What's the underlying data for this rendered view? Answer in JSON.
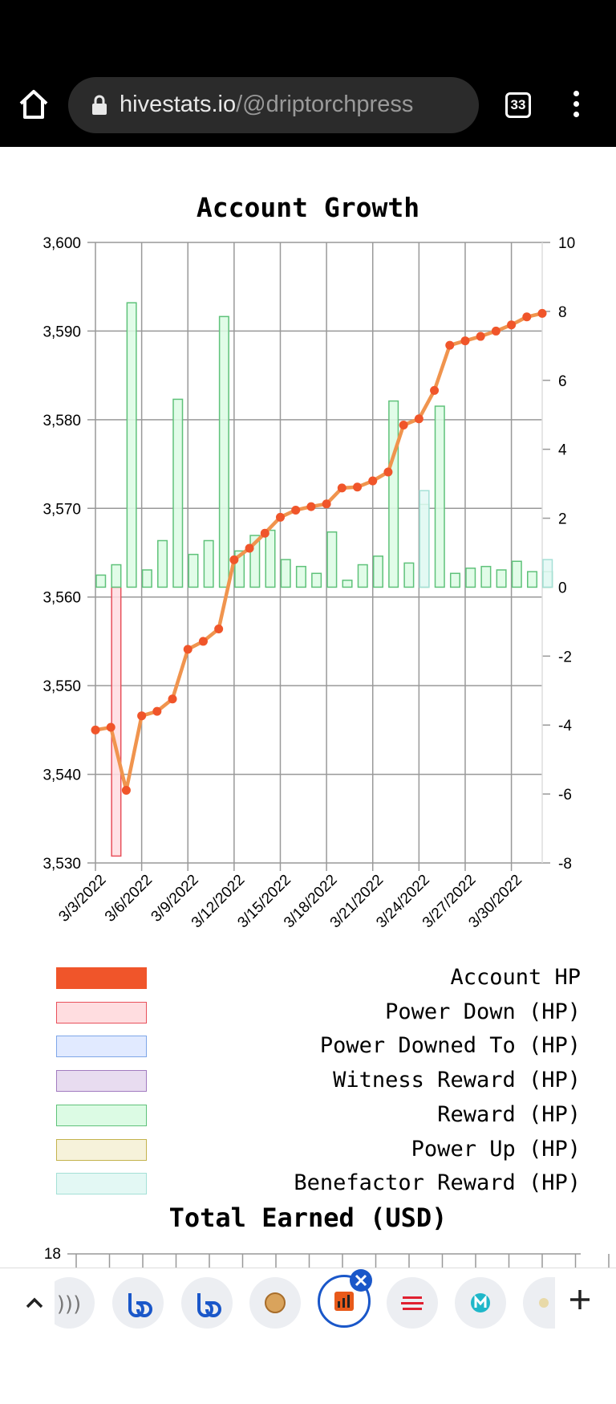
{
  "browser": {
    "url_domain": "hivestats.io",
    "url_path": "/@driptorchpress",
    "tab_count": "33"
  },
  "chart_title": "Account Growth",
  "chart_data": {
    "type": "bar",
    "title": "Account Growth",
    "left_axis": {
      "ylim": [
        3530,
        3600
      ],
      "ticks": [
        "3,530",
        "3,540",
        "3,550",
        "3,560",
        "3,570",
        "3,580",
        "3,590",
        "3,600"
      ]
    },
    "right_axis": {
      "ylim": [
        -8,
        10
      ],
      "ticks": [
        "-8",
        "-6",
        "-4",
        "-2",
        "0",
        "2",
        "4",
        "6",
        "8",
        "10"
      ]
    },
    "x_tick_labels": [
      "3/3/2022",
      "3/6/2022",
      "3/9/2022",
      "3/12/2022",
      "3/15/2022",
      "3/18/2022",
      "3/21/2022",
      "3/24/2022",
      "3/27/2022",
      "3/30/2022"
    ],
    "grid": true,
    "legend_placement": "bottom",
    "series": [
      {
        "name": "Account HP",
        "axis": "left",
        "kind": "line",
        "color": "#f0552a",
        "values": [
          3545.0,
          3545.3,
          3538.2,
          3546.6,
          3547.1,
          3548.5,
          3554.1,
          3555.0,
          3556.4,
          3564.2,
          3565.5,
          3567.2,
          3569.0,
          3569.8,
          3570.2,
          3570.5,
          3572.3,
          3572.4,
          3573.1,
          3574.1,
          3579.4,
          3580.1,
          3583.3,
          3588.4,
          3588.9,
          3589.4,
          3590.0,
          3590.7,
          3591.6,
          3592.0
        ]
      },
      {
        "name": "Power Down (HP)",
        "axis": "right",
        "kind": "bar",
        "color": "#ffdde0",
        "stroke": "#e8505b",
        "values": [
          0,
          -7.8,
          0,
          0,
          0,
          0,
          0,
          0,
          0,
          0,
          0,
          0,
          0,
          0,
          0,
          0,
          0,
          0,
          0,
          0,
          0,
          0,
          0,
          0,
          0,
          0,
          0,
          0,
          0,
          0
        ]
      },
      {
        "name": "Power Downed To (HP)",
        "axis": "right",
        "kind": "bar",
        "color": "#e1eaff",
        "stroke": "#7fa6e8",
        "values": []
      },
      {
        "name": "Witness Reward (HP)",
        "axis": "right",
        "kind": "bar",
        "color": "#e8dcf0",
        "stroke": "#a27cc0",
        "values": []
      },
      {
        "name": "Reward (HP)",
        "axis": "right",
        "kind": "bar",
        "color": "#dcfbe4",
        "stroke": "#5fc27a",
        "values": [
          0.35,
          0.65,
          8.25,
          0.5,
          1.35,
          5.45,
          0.95,
          1.35,
          7.85,
          1.05,
          1.5,
          1.65,
          0.8,
          0.6,
          0.4,
          1.6,
          0.2,
          0.65,
          0.9,
          5.4,
          0.7,
          2.4,
          5.25,
          0.4,
          0.55,
          0.6,
          0.5,
          0.75,
          0.45,
          0.45
        ]
      },
      {
        "name": "Power Up (HP)",
        "axis": "right",
        "kind": "bar",
        "color": "#f6f2da",
        "stroke": "#c4b34d",
        "values": []
      },
      {
        "name": "Benefactor Reward (HP)",
        "axis": "right",
        "kind": "bar",
        "color": "#e3f8f4",
        "stroke": "#a5e0d6",
        "values": [
          0,
          0,
          0,
          0,
          0,
          0,
          0,
          0,
          0,
          0,
          0,
          0,
          0,
          0,
          0,
          0,
          0,
          0,
          0,
          0,
          0,
          2.8,
          0,
          0,
          0,
          0,
          0,
          0,
          0,
          0.8
        ]
      }
    ]
  },
  "legend": [
    {
      "label": "Account HP",
      "fill": "#f0552a",
      "stroke": "#f0552a"
    },
    {
      "label": "Power Down (HP)",
      "fill": "#ffdde0",
      "stroke": "#e8505b"
    },
    {
      "label": "Power Downed To (HP)",
      "fill": "#e1eaff",
      "stroke": "#7fa6e8"
    },
    {
      "label": "Witness Reward (HP)",
      "fill": "#e8dcf0",
      "stroke": "#a27cc0"
    },
    {
      "label": "Reward (HP)",
      "fill": "#dcfbe4",
      "stroke": "#5fc27a"
    },
    {
      "label": "Power Up (HP)",
      "fill": "#f6f2da",
      "stroke": "#c4b34d"
    },
    {
      "label": "Benefactor Reward (HP)",
      "fill": "#e3f8f4",
      "stroke": "#a5e0d6"
    }
  ],
  "total_title": "Total Earned (USD)",
  "total_chart_first_tick": "18",
  "bottom_tabs": {
    "icons": [
      "chevron-up-icon",
      "partial-tab-icon",
      "app-tab-icon",
      "app-tab-icon",
      "badge-tab-icon",
      "hivestats-tab-icon",
      "menu-tab-icon",
      "m-tab-icon",
      "partial-tab-icon",
      "plus-icon"
    ]
  }
}
